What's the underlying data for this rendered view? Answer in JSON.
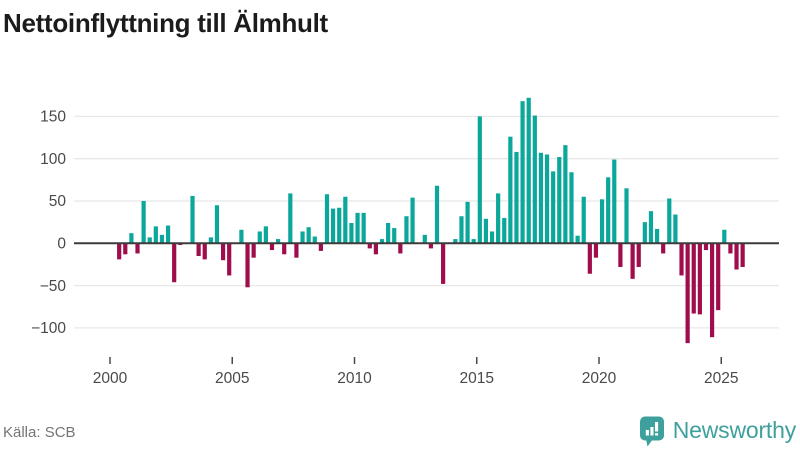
{
  "title": "Nettoinflyttning till Älmhult",
  "source": "Källa: SCB",
  "branding": {
    "name": "Newsworthy",
    "logo_icon": "bar-chart-speech-bubble"
  },
  "colors": {
    "positive_bar": "#0ba79b",
    "negative_bar": "#a00d4c",
    "zero_axis": "#3c3c3c",
    "grid": "#e8e8e8",
    "tick_label": "#4a4a4a",
    "title_text": "#1b1b1b",
    "source_text": "#757575",
    "brand_teal": "#3ea09d"
  },
  "chart_data": {
    "type": "bar",
    "title": "Nettoinflyttning till Älmhult",
    "frequency": "quarterly",
    "start_year": 2000,
    "start_quarter": 2,
    "end_year": 2025,
    "end_quarter": 4,
    "x_ticks": [
      2000,
      2005,
      2010,
      2015,
      2020,
      2025
    ],
    "y_ticks": [
      150,
      100,
      50,
      0,
      -50,
      -100
    ],
    "ylim": [
      -120,
      181
    ],
    "grid": true,
    "legend": false,
    "xlabel": "",
    "ylabel": "",
    "values": [
      -19,
      -13,
      12,
      -12,
      50,
      7,
      20,
      10,
      21,
      -46,
      -2,
      0,
      56,
      -15,
      -19,
      7,
      45,
      -20,
      -38,
      0,
      16,
      -52,
      -17,
      14,
      20,
      -8,
      5,
      -13,
      59,
      -17,
      14,
      19,
      8,
      -9,
      58,
      41,
      42,
      55,
      24,
      36,
      36,
      -6,
      -13,
      5,
      24,
      18,
      -12,
      32,
      54,
      0,
      10,
      -6,
      68,
      -48,
      0,
      5,
      32,
      49,
      5,
      150,
      29,
      14,
      59,
      30,
      126,
      108,
      168,
      172,
      151,
      107,
      105,
      85,
      102,
      116,
      84,
      9,
      55,
      -36,
      -17,
      52,
      78,
      99,
      -28,
      65,
      -42,
      -28,
      25,
      38,
      17,
      -12,
      53,
      34,
      -38,
      -118,
      -83,
      -84,
      -8,
      -111,
      -79,
      16,
      -12,
      -31,
      -28
    ]
  }
}
